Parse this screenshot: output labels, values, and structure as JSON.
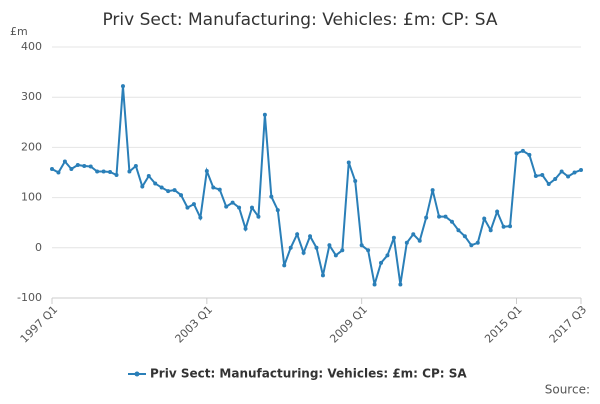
{
  "chart_data": {
    "type": "line",
    "title": "Priv Sect: Manufacturing: Vehicles: £m: CP: SA",
    "y_unit": "£m",
    "source": "Source:",
    "categories": [
      "1997 Q1",
      null,
      null,
      null,
      null,
      null,
      null,
      null,
      null,
      null,
      null,
      null,
      null,
      null,
      null,
      null,
      null,
      null,
      null,
      null,
      null,
      null,
      null,
      null,
      "2003 Q1",
      null,
      null,
      null,
      null,
      null,
      null,
      null,
      null,
      null,
      null,
      null,
      null,
      null,
      null,
      null,
      null,
      null,
      null,
      null,
      null,
      null,
      null,
      null,
      "2009 Q1",
      null,
      null,
      null,
      null,
      null,
      null,
      null,
      null,
      null,
      null,
      null,
      null,
      null,
      null,
      null,
      null,
      null,
      null,
      null,
      null,
      null,
      null,
      null,
      "2015 Q1",
      null,
      null,
      null,
      null,
      null,
      null,
      null,
      null,
      null,
      "2017 Q3"
    ],
    "series": [
      {
        "name": "Priv Sect: Manufacturing: Vehicles: £m: CP: SA",
        "color": "#2a7fb8",
        "values": [
          157,
          150,
          172,
          157,
          165,
          163,
          162,
          152,
          152,
          151,
          145,
          322,
          152,
          163,
          122,
          143,
          128,
          120,
          113,
          115,
          105,
          80,
          87,
          60,
          153,
          120,
          116,
          82,
          90,
          80,
          38,
          80,
          62,
          265,
          102,
          75,
          -35,
          0,
          27,
          -10,
          23,
          0,
          -55,
          5,
          -15,
          -5,
          170,
          133,
          5,
          -5,
          -73,
          -30,
          -15,
          20,
          -73,
          10,
          27,
          14,
          60,
          115,
          62,
          62,
          52,
          35,
          23,
          5,
          10,
          58,
          35,
          72,
          42,
          43,
          188,
          193,
          185,
          143,
          145,
          127,
          137,
          152,
          142,
          150,
          155
        ]
      }
    ],
    "ylim": [
      -100,
      400
    ],
    "yticks": [
      -100,
      0,
      100,
      200,
      300,
      400
    ],
    "grid": true,
    "legend": "bottom"
  }
}
